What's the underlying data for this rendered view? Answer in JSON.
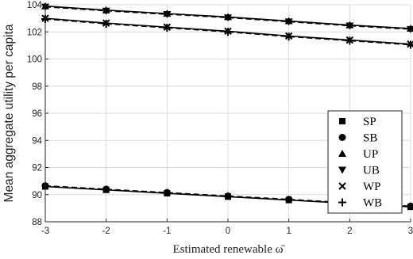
{
  "chart_data": {
    "type": "line",
    "xlabel": "Estimated renewable ω̄",
    "ylabel": "Mean aggregate utility per capita",
    "xlim": [
      -3,
      3
    ],
    "ylim": [
      88,
      104
    ],
    "x_ticks": [
      -3,
      -2,
      -1,
      0,
      1,
      2,
      3
    ],
    "y_ticks": [
      88,
      90,
      92,
      94,
      96,
      98,
      100,
      102,
      104
    ],
    "grid": true,
    "legend_position": "right",
    "x": [
      -3,
      -2,
      -1,
      0,
      1,
      2,
      3
    ],
    "series": [
      {
        "name": "SP",
        "marker": "square",
        "line": "solid",
        "values": [
          90.6,
          90.35,
          90.1,
          89.85,
          89.6,
          89.35,
          89.1
        ]
      },
      {
        "name": "SB",
        "marker": "circle",
        "line": "dashed",
        "values": [
          90.65,
          90.4,
          90.15,
          89.9,
          89.65,
          89.4,
          89.15
        ]
      },
      {
        "name": "UP",
        "marker": "triangle-up",
        "line": "solid",
        "values": [
          103.9,
          103.6,
          103.35,
          103.1,
          102.8,
          102.5,
          102.25
        ]
      },
      {
        "name": "UB",
        "marker": "triangle-down",
        "line": "dashed",
        "values": [
          103.85,
          103.55,
          103.3,
          103.05,
          102.75,
          102.45,
          102.2
        ]
      },
      {
        "name": "WP",
        "marker": "x",
        "line": "solid",
        "values": [
          103.0,
          102.65,
          102.35,
          102.05,
          101.7,
          101.4,
          101.1
        ]
      },
      {
        "name": "WB",
        "marker": "plus",
        "line": "dashed",
        "values": [
          102.95,
          102.6,
          102.3,
          102.0,
          101.65,
          101.35,
          101.05
        ]
      }
    ]
  }
}
